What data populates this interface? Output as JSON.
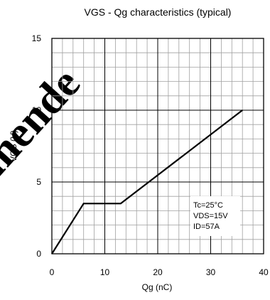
{
  "chart_data": {
    "type": "line",
    "title": "VGS - Qg characteristics (typical)",
    "xlabel": "Qg (nC)",
    "ylabel": "VGS (V)",
    "xlim": [
      0,
      40
    ],
    "ylim": [
      0,
      15
    ],
    "x_ticks": [
      0,
      10,
      20,
      30,
      40
    ],
    "x_tick_labels": [
      "0",
      "10",
      "20",
      "30",
      "40"
    ],
    "y_ticks": [
      0,
      5,
      10,
      15
    ],
    "y_tick_labels": [
      "0",
      "5",
      "10",
      "15"
    ],
    "x_minor_step": 2,
    "y_minor_step": 1,
    "grid": true,
    "series": [
      {
        "x": [
          0,
          6,
          13,
          36
        ],
        "y": [
          0,
          3.5,
          3.5,
          10
        ]
      }
    ],
    "annotation": {
      "lines": [
        "Tc=25°C",
        "VDS=15V",
        "ID=57A"
      ],
      "position": "bottom-right"
    },
    "watermark": "mende",
    "colors": {
      "line": "#000000",
      "grid_major": "#000000",
      "grid_minor": "#a0a0a0",
      "watermark": "#e3e3e3"
    }
  }
}
